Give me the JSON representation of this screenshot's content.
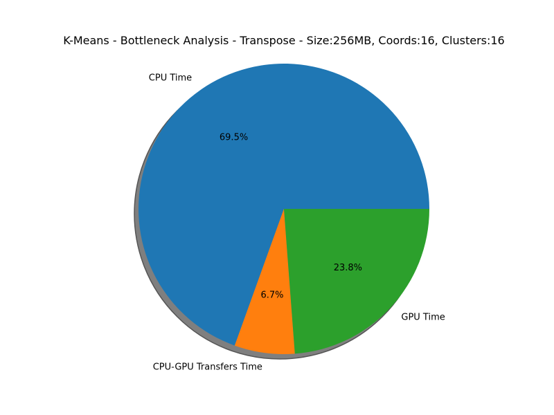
{
  "chart_data": {
    "type": "pie",
    "title": "K-Means - Bottleneck Analysis - Transpose - Size:256MB, Coords:16, Clusters:16",
    "slices": [
      {
        "label": "CPU Time",
        "value": 69.5,
        "pct_label": "69.5%",
        "color": "#1f77b4"
      },
      {
        "label": "CPU-GPU Transfers Time",
        "value": 6.7,
        "pct_label": "6.7%",
        "color": "#ff7f0e"
      },
      {
        "label": "GPU Time",
        "value": 23.8,
        "pct_label": "23.8%",
        "color": "#2ca02c"
      }
    ],
    "start_angle_deg": 0,
    "direction": "counterclockwise",
    "shadow": true
  }
}
